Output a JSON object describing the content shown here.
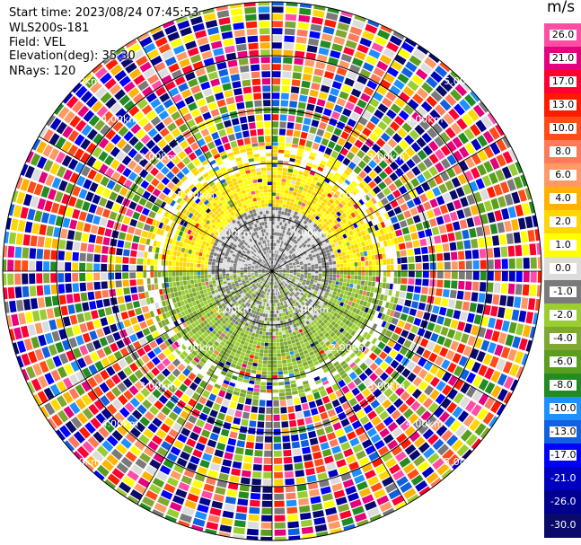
{
  "info": {
    "start_time": "Start time: 2023/08/24 07:45:53",
    "instrument": "WLS200s-181",
    "field": "Field: VEL",
    "elevation": "Elevation(deg): 35.30",
    "nrays": "NRays: 120"
  },
  "colorbar": {
    "unit": "m/s",
    "ticks": [
      "26.0",
      "21.0",
      "17.0",
      "13.0",
      "10.0",
      "8.0",
      "6.0",
      "4.0",
      "2.0",
      "1.0",
      "0.0",
      "-1.0",
      "-2.0",
      "-4.0",
      "-6.0",
      "-8.0",
      "-10.0",
      "-13.0",
      "-17.0",
      "-21.0",
      "-26.0",
      "-30.0"
    ],
    "colors": [
      "#ff4da6",
      "#e6007e",
      "#ff0033",
      "#ff1a00",
      "#ff4d1a",
      "#ff7a5a",
      "#ff9966",
      "#ffb300",
      "#ffd700",
      "#ffff00",
      "#dcdcdc",
      "#7a7a7a",
      "#9acd32",
      "#7fa832",
      "#5a9e1e",
      "#228b22",
      "#1e90ff",
      "#1060e0",
      "#0000ff",
      "#0000c0",
      "#000090",
      "#0a0a6a"
    ]
  },
  "chart_data": {
    "type": "heatmap",
    "title": "",
    "projection": "polar (PPI)",
    "nrays": 120,
    "range_rings_km": [
      1.0,
      2.0,
      3.0,
      4.0,
      5.0
    ],
    "ring_labels": {
      "1.0": "1.00km",
      "2.0": "2.00km",
      "3.0": "3.00km",
      "4.0": "4.00km",
      "5.0": "5.00km"
    },
    "range_max_km": 5.0,
    "spoke_angles_deg": [
      0,
      30,
      60,
      90,
      120,
      150,
      180,
      210,
      240,
      270,
      300,
      330
    ],
    "colormap_range": [
      -30.0,
      26.0
    ],
    "valid_data": [
      {
        "region": "north sector",
        "range_km": [
          1.2,
          2.4
        ],
        "velocity_ms": 2.0
      },
      {
        "region": "near center",
        "range_km": [
          0.0,
          1.2
        ],
        "velocity_ms": 0.0
      },
      {
        "region": "south sector",
        "range_km": [
          0.5,
          2.4
        ],
        "velocity_ms": -2.0
      }
    ],
    "noise_beyond_km": 2.4
  }
}
